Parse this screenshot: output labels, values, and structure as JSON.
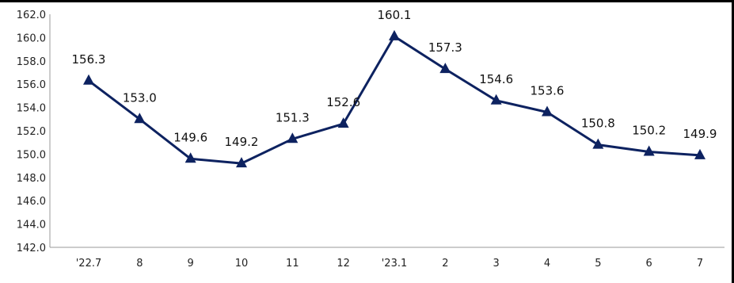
{
  "chart_data": {
    "type": "line",
    "title": "",
    "xlabel": "",
    "ylabel": "",
    "categories": [
      "'22.7",
      "8",
      "9",
      "10",
      "11",
      "12",
      "'23.1",
      "2",
      "3",
      "4",
      "5",
      "6",
      "7"
    ],
    "values": [
      156.3,
      153.0,
      149.6,
      149.2,
      151.3,
      152.6,
      160.1,
      157.3,
      154.6,
      153.6,
      150.8,
      150.2,
      149.9
    ],
    "data_labels": [
      "156.3",
      "153.0",
      "149.6",
      "149.2",
      "151.3",
      "152.6",
      "160.1",
      "157.3",
      "154.6",
      "153.6",
      "150.8",
      "150.2",
      "149.9"
    ],
    "ylim": [
      142.0,
      162.0
    ],
    "yticks": [
      "142.0",
      "144.0",
      "146.0",
      "148.0",
      "150.0",
      "152.0",
      "154.0",
      "156.0",
      "158.0",
      "160.0",
      "162.0"
    ],
    "grid": false,
    "legend": "none",
    "line_color": "#0d2260",
    "marker": "triangle"
  }
}
